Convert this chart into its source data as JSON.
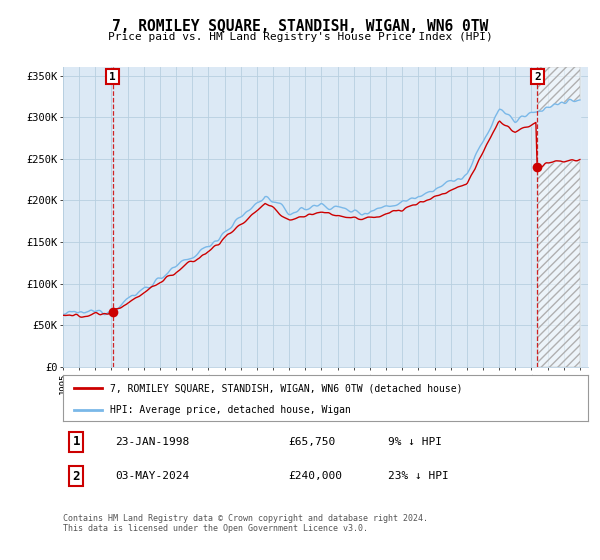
{
  "title": "7, ROMILEY SQUARE, STANDISH, WIGAN, WN6 0TW",
  "subtitle": "Price paid vs. HM Land Registry's House Price Index (HPI)",
  "ylim": [
    0,
    360000
  ],
  "yticks": [
    0,
    50000,
    100000,
    150000,
    200000,
    250000,
    300000,
    350000
  ],
  "ytick_labels": [
    "£0",
    "£50K",
    "£100K",
    "£150K",
    "£200K",
    "£250K",
    "£300K",
    "£350K"
  ],
  "sale1_date": 1998.07,
  "sale1_price": 65750,
  "sale1_label": "1",
  "sale2_date": 2024.37,
  "sale2_price": 240000,
  "sale2_label": "2",
  "hpi_color": "#7ab8e8",
  "hpi_fill_color": "#dce9f5",
  "sale_color": "#cc0000",
  "marker_color": "#cc0000",
  "bg_color": "#ffffff",
  "plot_bg_color": "#dce9f5",
  "grid_color": "#b8cfe0",
  "hatch_color": "#b0b0b0",
  "legend_label_sale": "7, ROMILEY SQUARE, STANDISH, WIGAN, WN6 0TW (detached house)",
  "legend_label_hpi": "HPI: Average price, detached house, Wigan",
  "footnote": "Contains HM Land Registry data © Crown copyright and database right 2024.\nThis data is licensed under the Open Government Licence v3.0.",
  "x_start": 1995.0,
  "x_end": 2027.5,
  "xtick_years": [
    1995,
    1996,
    1997,
    1998,
    1999,
    2000,
    2001,
    2002,
    2003,
    2004,
    2005,
    2006,
    2007,
    2008,
    2009,
    2010,
    2011,
    2012,
    2013,
    2014,
    2015,
    2016,
    2017,
    2018,
    2019,
    2020,
    2021,
    2022,
    2023,
    2024,
    2025,
    2026,
    2027
  ]
}
